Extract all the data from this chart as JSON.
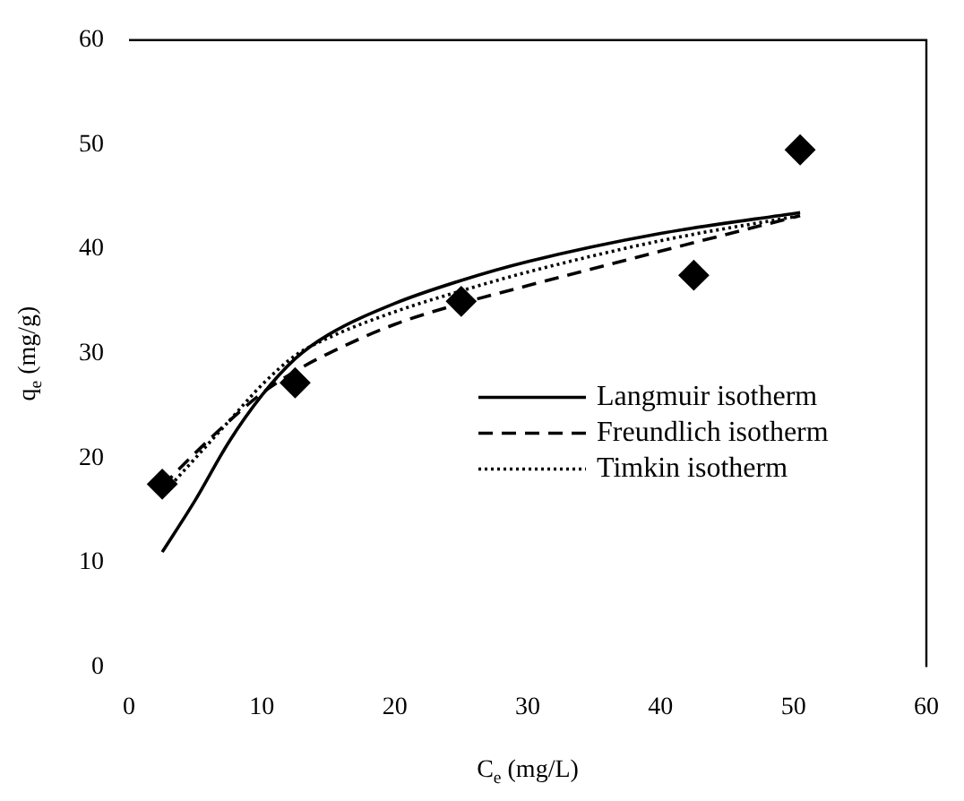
{
  "chart_data": {
    "type": "line",
    "xlabel": "C$_{e}$ (mg/L)",
    "ylabel": "q$_{e}$ (mg/g)",
    "xlim": [
      0,
      60
    ],
    "xticks": [
      0,
      10,
      20,
      30,
      40,
      50,
      60
    ],
    "ylim": [
      0,
      60
    ],
    "yticks": [
      0,
      10,
      20,
      30,
      40,
      50,
      60
    ],
    "grid": false,
    "legend": "right",
    "series": [
      {
        "type": "scatter",
        "color": "#000000",
        "marker": "diamond",
        "x": [
          2.5,
          12.5,
          25,
          42.5,
          50.5
        ],
        "values": [
          17.5,
          27.2,
          35,
          37.5,
          49.5
        ]
      },
      {
        "name": "Langmuir isotherm",
        "color": "#000000",
        "line_style": "solid",
        "marker": "none",
        "x": [
          2.5,
          5,
          7.5,
          10,
          12.5,
          15,
          20,
          25,
          30,
          40,
          50.5
        ],
        "values": [
          11,
          16,
          21.5,
          26,
          29.5,
          31.8,
          34.8,
          37,
          38.8,
          41.5,
          43.5
        ]
      },
      {
        "name": "Freundlich isotherm",
        "color": "#000000",
        "line_style": "dashed",
        "marker": "none",
        "x": [
          2.5,
          5,
          7.5,
          10,
          12.5,
          15,
          20,
          25,
          30,
          40,
          50.5
        ],
        "values": [
          17.3,
          20.5,
          23.5,
          26.2,
          28.3,
          30,
          32.8,
          34.8,
          36.5,
          39.8,
          43.2
        ]
      },
      {
        "name": "Timkin isotherm",
        "color": "#000000",
        "line_style": "dotted",
        "marker": "none",
        "x": [
          2.5,
          5,
          7.5,
          10,
          12.5,
          15,
          20,
          25,
          30,
          40,
          50.5
        ],
        "values": [
          16.5,
          20,
          23.5,
          27,
          29.8,
          31.5,
          34,
          36,
          37.8,
          40.8,
          43.2
        ]
      }
    ]
  }
}
